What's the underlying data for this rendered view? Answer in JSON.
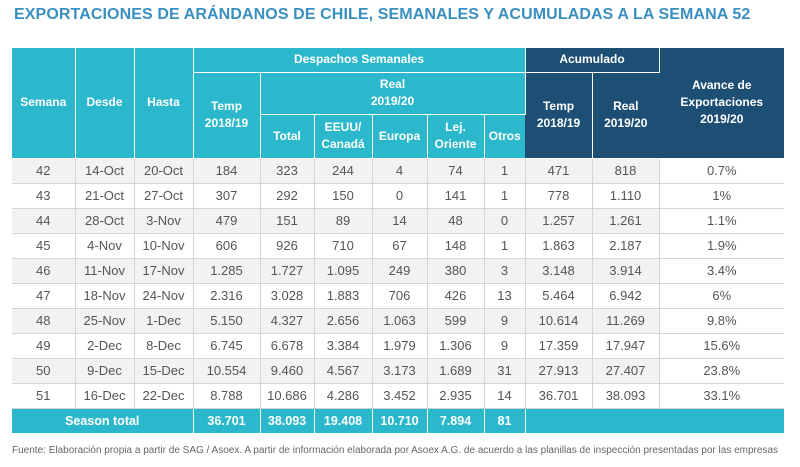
{
  "title": "EXPORTACIONES DE ARÁNDANOS DE CHILE, SEMANALES Y ACUMULADAS A LA SEMANA 52",
  "headers": {
    "semana": "Semana",
    "desde": "Desde",
    "hasta": "Hasta",
    "despachos": "Despachos Semanales",
    "temp_l1": "Temp",
    "temp_l2": "2018/19",
    "real_l1": "Real",
    "real_l2": "2019/20",
    "total": "Total",
    "eeuu_l1": "EEUU/",
    "eeuu_l2": "Canadá",
    "europa": "Europa",
    "lej_l1": "Lej.",
    "lej_l2": "Oriente",
    "otros": "Otros",
    "acumulado": "Acumulado",
    "acc_temp_l1": "Temp",
    "acc_temp_l2": "2018/19",
    "acc_real_l1": "Real",
    "acc_real_l2": "2019/20",
    "avance_l1": "Avance de",
    "avance_l2": "Exportaciones",
    "avance_l3": "2019/20"
  },
  "rows": [
    {
      "semana": "42",
      "desde": "14-Oct",
      "hasta": "20-Oct",
      "temp": "184",
      "total": "323",
      "eeuu": "244",
      "europa": "4",
      "lej": "74",
      "otros": "1",
      "acc_temp": "471",
      "acc_real": "818",
      "avance": "0.7%"
    },
    {
      "semana": "43",
      "desde": "21-Oct",
      "hasta": "27-Oct",
      "temp": "307",
      "total": "292",
      "eeuu": "150",
      "europa": "0",
      "lej": "141",
      "otros": "1",
      "acc_temp": "778",
      "acc_real": "1.110",
      "avance": "1%"
    },
    {
      "semana": "44",
      "desde": "28-Oct",
      "hasta": "3-Nov",
      "temp": "479",
      "total": "151",
      "eeuu": "89",
      "europa": "14",
      "lej": "48",
      "otros": "0",
      "acc_temp": "1.257",
      "acc_real": "1.261",
      "avance": "1.1%"
    },
    {
      "semana": "45",
      "desde": "4-Nov",
      "hasta": "10-Nov",
      "temp": "606",
      "total": "926",
      "eeuu": "710",
      "europa": "67",
      "lej": "148",
      "otros": "1",
      "acc_temp": "1.863",
      "acc_real": "2.187",
      "avance": "1.9%"
    },
    {
      "semana": "46",
      "desde": "11-Nov",
      "hasta": "17-Nov",
      "temp": "1.285",
      "total": "1.727",
      "eeuu": "1.095",
      "europa": "249",
      "lej": "380",
      "otros": "3",
      "acc_temp": "3.148",
      "acc_real": "3.914",
      "avance": "3.4%"
    },
    {
      "semana": "47",
      "desde": "18-Nov",
      "hasta": "24-Nov",
      "temp": "2.316",
      "total": "3.028",
      "eeuu": "1.883",
      "europa": "706",
      "lej": "426",
      "otros": "13",
      "acc_temp": "5.464",
      "acc_real": "6.942",
      "avance": "6%"
    },
    {
      "semana": "48",
      "desde": "25-Nov",
      "hasta": "1-Dec",
      "temp": "5.150",
      "total": "4.327",
      "eeuu": "2.656",
      "europa": "1.063",
      "lej": "599",
      "otros": "9",
      "acc_temp": "10.614",
      "acc_real": "11.269",
      "avance": "9.8%"
    },
    {
      "semana": "49",
      "desde": "2-Dec",
      "hasta": "8-Dec",
      "temp": "6.745",
      "total": "6.678",
      "eeuu": "3.384",
      "europa": "1.979",
      "lej": "1.306",
      "otros": "9",
      "acc_temp": "17.359",
      "acc_real": "17.947",
      "avance": "15.6%"
    },
    {
      "semana": "50",
      "desde": "9-Dec",
      "hasta": "15-Dec",
      "temp": "10.554",
      "total": "9.460",
      "eeuu": "4.567",
      "europa": "3.173",
      "lej": "1.689",
      "otros": "31",
      "acc_temp": "27.913",
      "acc_real": "27.407",
      "avance": "23.8%"
    },
    {
      "semana": "51",
      "desde": "16-Dec",
      "hasta": "22-Dec",
      "temp": "8.788",
      "total": "10.686",
      "eeuu": "4.286",
      "europa": "3.452",
      "lej": "2.935",
      "otros": "14",
      "acc_temp": "36.701",
      "acc_real": "38.093",
      "avance": "33.1%"
    }
  ],
  "total_row": {
    "label": "Season total",
    "temp": "36.701",
    "total": "38.093",
    "eeuu": "19.408",
    "europa": "10.710",
    "lej": "7.894",
    "otros": "81"
  },
  "footnote": "Fuente: Elaboración propia a partir de SAG / Asoex. A partir de información elaborada por Asoex A.G. de acuerdo a las planillas de inspección presentadas por las empresas",
  "colors": {
    "accent": "#2cb8cc",
    "dark": "#1d4f75",
    "title": "#3a8fc1"
  }
}
